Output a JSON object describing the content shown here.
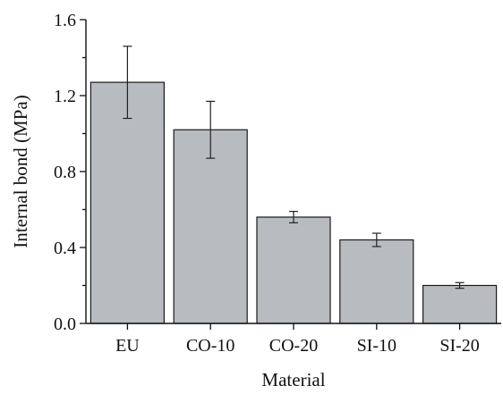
{
  "chart_data": {
    "type": "bar",
    "title": "",
    "xlabel": "Material",
    "ylabel": "Internal bond (MPa)",
    "categories": [
      "EU",
      "CO-10",
      "CO-20",
      "SI-10",
      "SI-20"
    ],
    "values": [
      1.27,
      1.02,
      0.56,
      0.44,
      0.2
    ],
    "error": [
      0.19,
      0.15,
      0.03,
      0.035,
      0.015
    ],
    "ylim": [
      0,
      1.6
    ],
    "yticks": [
      "0.0",
      "0.4",
      "0.8",
      "1.2",
      "1.6"
    ],
    "grid": false,
    "bar_color": "#b8bcc0"
  }
}
